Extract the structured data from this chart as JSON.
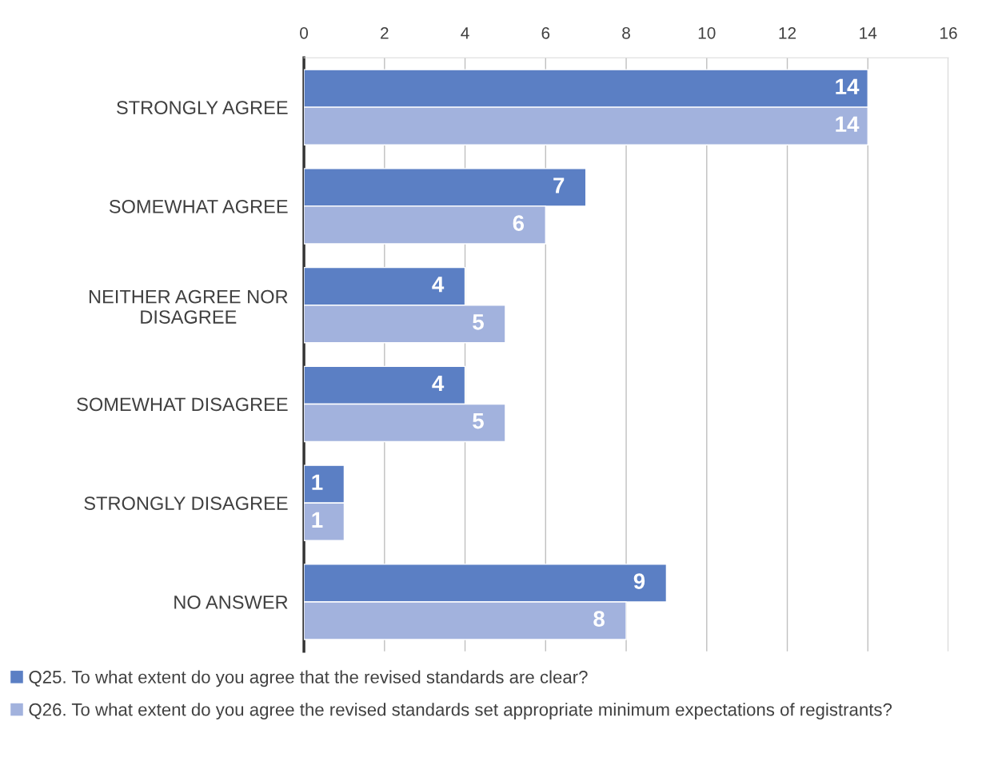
{
  "chart_data": {
    "type": "bar",
    "orientation": "horizontal",
    "categories": [
      "STRONGLY AGREE",
      "SOMEWHAT AGREE",
      "NEITHER AGREE NOR\nDISAGREE",
      "SOMEWHAT DISAGREE",
      "STRONGLY DISAGREE",
      "NO ANSWER"
    ],
    "series": [
      {
        "name": "Q25. To what extent do you agree that the revised standards are clear?",
        "color": "#5b7fc4",
        "values": [
          14,
          7,
          4,
          4,
          1,
          9
        ]
      },
      {
        "name": "Q26. To what extent do you agree the revised standards set appropriate minimum expectations of registrants?",
        "color": "#a2b2dd",
        "values": [
          14,
          6,
          5,
          5,
          1,
          8
        ]
      }
    ],
    "xlim": [
      0,
      16
    ],
    "xticks": [
      0,
      2,
      4,
      6,
      8,
      10,
      12,
      14,
      16
    ],
    "grid": "x",
    "legend": "bottom",
    "data_labels": true
  }
}
